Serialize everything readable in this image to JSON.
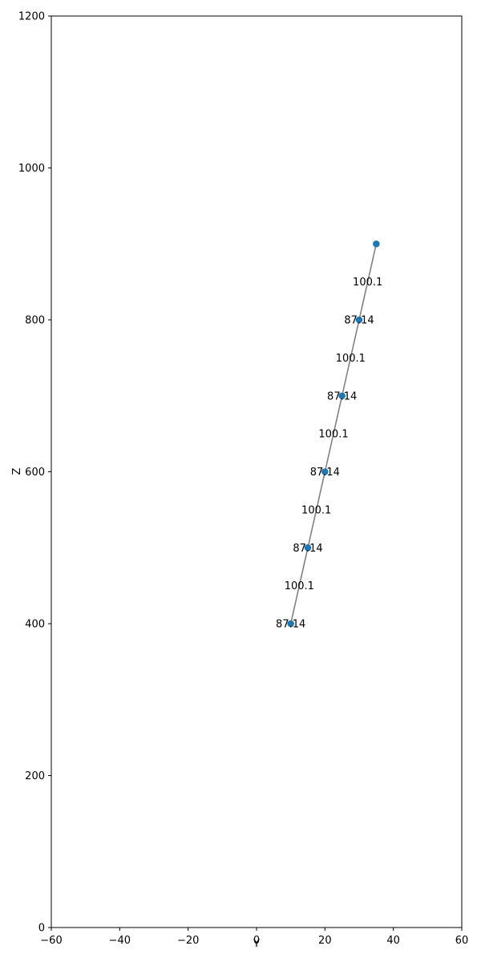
{
  "chart_data": {
    "type": "scatter",
    "title": "",
    "xlabel": "Y",
    "ylabel": "Z",
    "xlim": [
      -60,
      60
    ],
    "ylim": [
      0,
      1200
    ],
    "xticks": [
      "−60",
      "−40",
      "−20",
      "0",
      "20",
      "40",
      "60"
    ],
    "xtick_values": [
      -60,
      -40,
      -20,
      0,
      20,
      40,
      60
    ],
    "yticks": [
      "0",
      "200",
      "400",
      "600",
      "800",
      "1000",
      "1200"
    ],
    "ytick_values": [
      0,
      200,
      400,
      600,
      800,
      1000,
      1200
    ],
    "grid": false,
    "colors": {
      "points": "#1f77b4",
      "line": "#808080"
    },
    "points": [
      {
        "x": 10,
        "y": 400
      },
      {
        "x": 15,
        "y": 500
      },
      {
        "x": 20,
        "y": 600
      },
      {
        "x": 25,
        "y": 700
      },
      {
        "x": 30,
        "y": 800
      },
      {
        "x": 35,
        "y": 900
      }
    ],
    "point_labels": [
      {
        "text": "87.14",
        "x": 10,
        "y": 400
      },
      {
        "text": "87.14",
        "x": 15,
        "y": 500
      },
      {
        "text": "87.14",
        "x": 20,
        "y": 600
      },
      {
        "text": "87.14",
        "x": 25,
        "y": 700
      },
      {
        "text": "87.14",
        "x": 30,
        "y": 800
      }
    ],
    "segment_labels": [
      {
        "text": "100.1",
        "x": 12.5,
        "y": 450
      },
      {
        "text": "100.1",
        "x": 17.5,
        "y": 550
      },
      {
        "text": "100.1",
        "x": 22.5,
        "y": 650
      },
      {
        "text": "100.1",
        "x": 27.5,
        "y": 750
      },
      {
        "text": "100.1",
        "x": 32.5,
        "y": 850
      }
    ]
  }
}
